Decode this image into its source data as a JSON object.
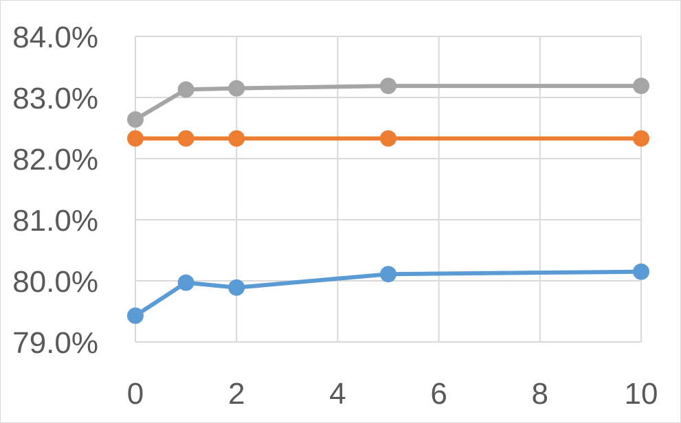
{
  "chart_data": {
    "type": "line",
    "title": "",
    "xlabel": "",
    "ylabel": "",
    "x": [
      0,
      1,
      2,
      5,
      10
    ],
    "xlim": [
      0,
      10
    ],
    "ylim": [
      79.0,
      84.0
    ],
    "x_ticks": [
      0,
      2,
      4,
      6,
      8,
      10
    ],
    "x_tick_labels": [
      "0",
      "2",
      "4",
      "6",
      "8",
      "10"
    ],
    "y_ticks": [
      79.0,
      80.0,
      81.0,
      82.0,
      83.0,
      84.0
    ],
    "y_tick_labels": [
      "79.0%",
      "80.0%",
      "81.0%",
      "82.0%",
      "83.0%",
      "84.0%"
    ],
    "grid": true,
    "legend": "none",
    "series": [
      {
        "values": [
          79.43,
          79.97,
          79.89,
          80.11,
          80.15
        ],
        "color": "#5b9bd5"
      },
      {
        "values": [
          82.33,
          82.33,
          82.33,
          82.33,
          82.33
        ],
        "color": "#ed7d31"
      },
      {
        "values": [
          82.64,
          83.13,
          83.15,
          83.19,
          83.19
        ],
        "color": "#a5a5a5"
      }
    ]
  }
}
